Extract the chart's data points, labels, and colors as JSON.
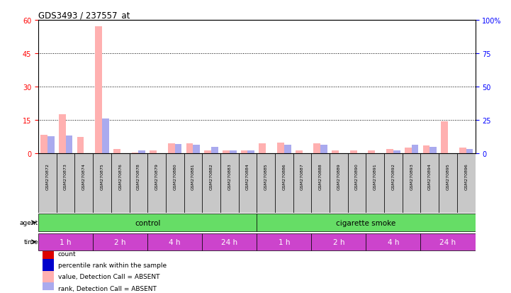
{
  "title": "GDS3493 / 237557_at",
  "samples": [
    "GSM270872",
    "GSM270873",
    "GSM270874",
    "GSM270875",
    "GSM270876",
    "GSM270878",
    "GSM270879",
    "GSM270880",
    "GSM270881",
    "GSM270882",
    "GSM270883",
    "GSM270884",
    "GSM270885",
    "GSM270886",
    "GSM270887",
    "GSM270888",
    "GSM270889",
    "GSM270890",
    "GSM270891",
    "GSM270892",
    "GSM270893",
    "GSM270894",
    "GSM270895",
    "GSM270896"
  ],
  "count_values": [
    8.5,
    17.5,
    7.5,
    57.0,
    2.0,
    0.5,
    1.5,
    4.5,
    4.5,
    1.5,
    1.5,
    1.5,
    4.5,
    5.0,
    1.5,
    4.5,
    1.5,
    1.5,
    1.5,
    2.0,
    2.5,
    3.5,
    14.5,
    2.5
  ],
  "rank_values": [
    13.0,
    13.5,
    0.0,
    26.0,
    0.0,
    2.5,
    0.0,
    7.0,
    6.5,
    5.0,
    2.5,
    2.5,
    0.0,
    6.5,
    0.0,
    6.5,
    0.0,
    0.0,
    0.0,
    2.5,
    6.5,
    5.0,
    0.0,
    3.5
  ],
  "is_absent": [
    true,
    true,
    true,
    true,
    true,
    true,
    true,
    true,
    true,
    true,
    true,
    true,
    true,
    true,
    true,
    true,
    true,
    true,
    true,
    true,
    true,
    true,
    true,
    true
  ],
  "agent_groups": [
    {
      "label": "control",
      "start": 0,
      "end": 12,
      "color": "#90EE90"
    },
    {
      "label": "cigarette smoke",
      "start": 12,
      "end": 24,
      "color": "#90EE90"
    }
  ],
  "time_groups": [
    {
      "label": "1 h",
      "start": 0,
      "end": 3
    },
    {
      "label": "2 h",
      "start": 3,
      "end": 6
    },
    {
      "label": "4 h",
      "start": 6,
      "end": 9
    },
    {
      "label": "24 h",
      "start": 9,
      "end": 12
    },
    {
      "label": "1 h",
      "start": 12,
      "end": 15
    },
    {
      "label": "2 h",
      "start": 15,
      "end": 18
    },
    {
      "label": "4 h",
      "start": 18,
      "end": 21
    },
    {
      "label": "24 h",
      "start": 21,
      "end": 24
    }
  ],
  "ylim_left": [
    0,
    60
  ],
  "ylim_right": [
    0,
    100
  ],
  "yticks_left": [
    0,
    15,
    30,
    45,
    60
  ],
  "yticks_right": [
    0,
    25,
    50,
    75,
    100
  ],
  "bar_width": 0.38,
  "count_color": "#DD0000",
  "rank_color": "#0000CC",
  "count_absent_color": "#FFB0B0",
  "rank_absent_color": "#AAAAEE",
  "sample_box_color": "#C8C8C8",
  "agent_color": "#66DD66",
  "time_color": "#CC44CC",
  "time_text_color": "#FFFFFF",
  "plot_bg": "#FFFFFF",
  "legend_items": [
    {
      "color": "#DD0000",
      "label": "count"
    },
    {
      "color": "#0000CC",
      "label": "percentile rank within the sample"
    },
    {
      "color": "#FFB0B0",
      "label": "value, Detection Call = ABSENT"
    },
    {
      "color": "#AAAAEE",
      "label": "rank, Detection Call = ABSENT"
    }
  ]
}
